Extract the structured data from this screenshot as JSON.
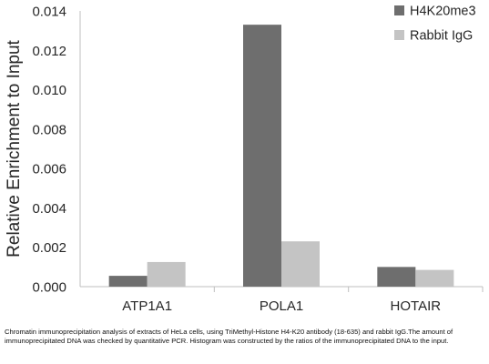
{
  "chart_data": {
    "type": "bar",
    "categories": [
      "ATP1A1",
      "POLA1",
      "HOTAIR"
    ],
    "series": [
      {
        "name": "H4K20me3",
        "color": "#6e6e6e",
        "values": [
          0.00055,
          0.0133,
          0.001
        ]
      },
      {
        "name": "Rabbit IgG",
        "color": "#c4c4c4",
        "values": [
          0.00125,
          0.0023,
          0.00085
        ]
      }
    ],
    "ylabel": "Relative Enrichment to Input",
    "ylim": [
      0,
      0.014
    ],
    "yticks": [
      "0.000",
      "0.002",
      "0.004",
      "0.006",
      "0.008",
      "0.010",
      "0.012",
      "0.014"
    ],
    "grid": false,
    "legend_position": "top-right"
  },
  "caption": "Chromatin immunoprecipitation analysis of extracts of HeLa cells, using TriMethyl-Histone H4-K20 antibody (18-635) and rabbit IgG.The amount of immunoprecipitated DNA was checked by quantitative PCR. Histogram was constructed by the ratios of the immunoprecipitated DNA to the input."
}
